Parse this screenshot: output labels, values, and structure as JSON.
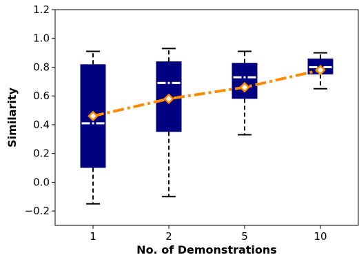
{
  "chart_data": {
    "type": "box",
    "title": "",
    "xlabel": "No. of Demonstrations",
    "ylabel": "Similarity",
    "categories": [
      "1",
      "2",
      "5",
      "10"
    ],
    "ylim": [
      -0.3,
      1.2
    ],
    "yticks": [
      -0.2,
      0.0,
      0.2,
      0.4,
      0.6,
      0.8,
      1.0,
      1.2
    ],
    "ytick_labels": [
      "−0.2",
      "0.0",
      "0.2",
      "0.4",
      "0.6",
      "0.8",
      "1.0",
      "1.2"
    ],
    "boxes": [
      {
        "category": "1",
        "whisker_low": -0.15,
        "q1": 0.1,
        "median": 0.41,
        "q3": 0.82,
        "whisker_high": 0.91,
        "mean": 0.46
      },
      {
        "category": "2",
        "whisker_low": -0.1,
        "q1": 0.35,
        "median": 0.69,
        "q3": 0.84,
        "whisker_high": 0.93,
        "mean": 0.58
      },
      {
        "category": "5",
        "whisker_low": 0.33,
        "q1": 0.58,
        "median": 0.73,
        "q3": 0.83,
        "whisker_high": 0.91,
        "mean": 0.66
      },
      {
        "category": "10",
        "whisker_low": 0.65,
        "q1": 0.75,
        "median": 0.8,
        "q3": 0.86,
        "whisker_high": 0.9,
        "mean": 0.78
      }
    ],
    "grid": false,
    "colors": {
      "box_fill": "#000080",
      "median_line": "#ffffff",
      "mean_line": "#ff8c00",
      "mean_marker_fill": "#ffffff",
      "mean_marker_edge": "#ff8c00",
      "whisker": "#000000"
    }
  }
}
